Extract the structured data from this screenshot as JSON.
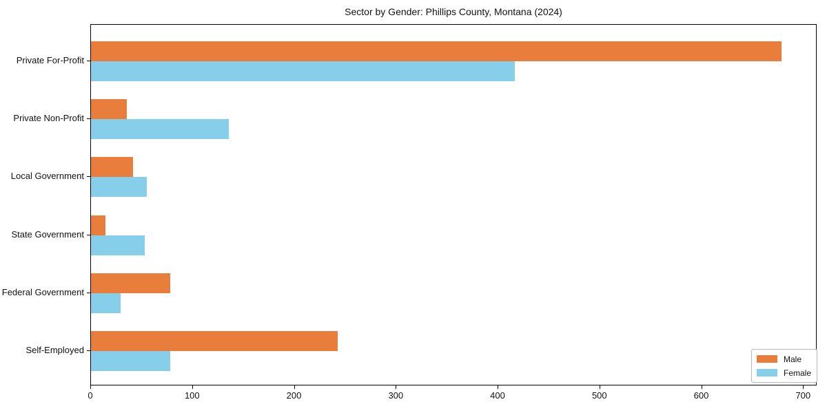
{
  "title": "Sector by Gender: Phillips County, Montana (2024)",
  "chart_data": {
    "type": "bar",
    "orientation": "horizontal",
    "title": "Sector by Gender: Phillips County, Montana (2024)",
    "xlabel": "",
    "ylabel": "",
    "categories": [
      "Private For-Profit",
      "Private Non-Profit",
      "Local Government",
      "State Government",
      "Federal Government",
      "Self-Employed"
    ],
    "series": [
      {
        "name": "Male",
        "color": "#e87d3c",
        "values": [
          678,
          35,
          41,
          14,
          78,
          242
        ]
      },
      {
        "name": "Female",
        "color": "#87ceeb",
        "values": [
          416,
          135,
          55,
          53,
          29,
          78
        ]
      }
    ],
    "xlim": [
      0,
      712
    ],
    "x_ticks": [
      0,
      100,
      200,
      300,
      400,
      500,
      600,
      700
    ],
    "grid": false,
    "legend_position": "lower right",
    "background_color": "#ffffff",
    "axis_color": "#000000"
  }
}
